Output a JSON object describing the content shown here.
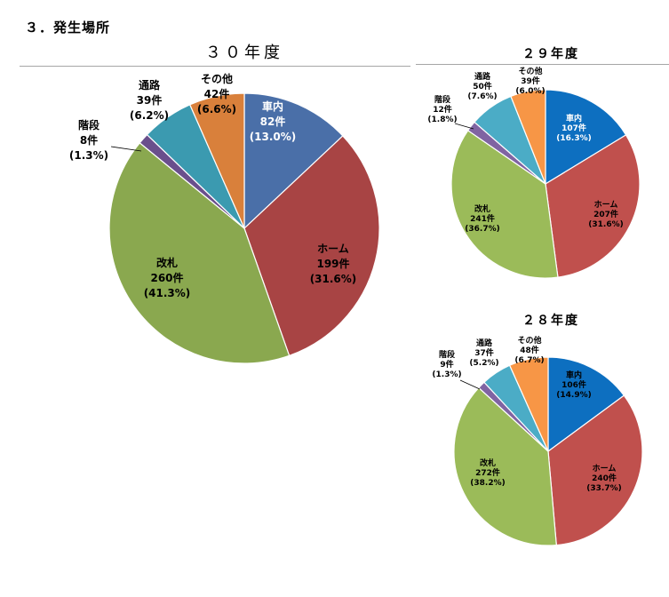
{
  "heading": "３．発生場所",
  "chart_data": [
    {
      "type": "pie",
      "title": "３０年度",
      "slices": [
        {
          "name": "車内",
          "count": "82件",
          "percent": "(13.0%)",
          "value": 13.0,
          "color": "#4a6fa8"
        },
        {
          "name": "ホーム",
          "count": "199件",
          "percent": "(31.6%)",
          "value": 31.6,
          "color": "#a84444"
        },
        {
          "name": "改札",
          "count": "260件",
          "percent": "(41.3%)",
          "value": 41.3,
          "color": "#8aa84f"
        },
        {
          "name": "階段",
          "count": "8件",
          "percent": "(1.3%)",
          "value": 1.3,
          "color": "#6a4f8c"
        },
        {
          "name": "通路",
          "count": "39件",
          "percent": "(6.2%)",
          "value": 6.2,
          "color": "#3b9ab0"
        },
        {
          "name": "その他",
          "count": "42件",
          "percent": "(6.6%)",
          "value": 6.6,
          "color": "#d9803b"
        }
      ]
    },
    {
      "type": "pie",
      "title": "２９年度",
      "slices": [
        {
          "name": "車内",
          "count": "107件",
          "percent": "(16.3%)",
          "value": 16.3,
          "color": "#0d6fc0"
        },
        {
          "name": "ホーム",
          "count": "207件",
          "percent": "(31.6%)",
          "value": 31.6,
          "color": "#c0504d"
        },
        {
          "name": "改札",
          "count": "241件",
          "percent": "(36.7%)",
          "value": 36.7,
          "color": "#9bbb59"
        },
        {
          "name": "階段",
          "count": "12件",
          "percent": "(1.8%)",
          "value": 1.8,
          "color": "#8064a2"
        },
        {
          "name": "通路",
          "count": "50件",
          "percent": "(7.6%)",
          "value": 7.6,
          "color": "#4bacc6"
        },
        {
          "name": "その他",
          "count": "39件",
          "percent": "(6.0%)",
          "value": 6.0,
          "color": "#f79646"
        }
      ]
    },
    {
      "type": "pie",
      "title": "２８年度",
      "slices": [
        {
          "name": "車内",
          "count": "106件",
          "percent": "(14.9%)",
          "value": 14.9,
          "color": "#0d6fc0"
        },
        {
          "name": "ホーム",
          "count": "240件",
          "percent": "(33.7%)",
          "value": 33.7,
          "color": "#c0504d"
        },
        {
          "name": "改札",
          "count": "272件",
          "percent": "(38.2%)",
          "value": 38.2,
          "color": "#9bbb59"
        },
        {
          "name": "階段",
          "count": "9件",
          "percent": "(1.3%)",
          "value": 1.3,
          "color": "#8064a2"
        },
        {
          "name": "通路",
          "count": "37件",
          "percent": "(5.2%)",
          "value": 5.2,
          "color": "#4bacc6"
        },
        {
          "name": "その他",
          "count": "48件",
          "percent": "(6.7%)",
          "value": 6.7,
          "color": "#f79646"
        }
      ]
    }
  ]
}
